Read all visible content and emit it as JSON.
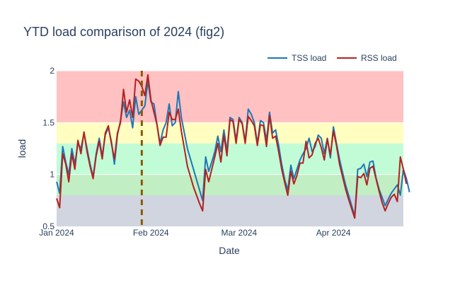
{
  "chart_data": {
    "type": "line",
    "title": "YTD load comparison of 2024 (fig2)",
    "xlabel": "Date",
    "ylabel": "load",
    "x_start": "2024-01-01",
    "x_range": [
      "2024-01-01",
      "2024-04-24"
    ],
    "ylim": [
      0.5,
      2
    ],
    "y_ticks": [
      0.5,
      1,
      1.5,
      2
    ],
    "y_tick_labels": [
      "0.5",
      "1",
      "1.5",
      "2"
    ],
    "x_ticks": [
      "2024-01-01",
      "2024-02-01",
      "2024-03-01",
      "2024-04-01"
    ],
    "x_tick_labels": [
      "Jan 2024",
      "Feb 2024",
      "Mar 2024",
      "Apr 2024"
    ],
    "marker_line": {
      "x": "2024-01-29",
      "color": "#8B5A00"
    },
    "bands": [
      {
        "from": 0.5,
        "to": 0.8,
        "color": "#d0d5df"
      },
      {
        "from": 0.8,
        "to": 1.0,
        "color": "#c2eec3"
      },
      {
        "from": 1.0,
        "to": 1.3,
        "color": "#c1fcd7"
      },
      {
        "from": 1.3,
        "to": 1.5,
        "color": "#fffdc0"
      },
      {
        "from": 1.5,
        "to": 2.0,
        "color": "#ffc1c1"
      }
    ],
    "legend_position": "top-right",
    "series": [
      {
        "name": "TSS load",
        "color": "#1f77b4",
        "values": [
          0.93,
          0.82,
          1.27,
          1.12,
          1.0,
          1.25,
          1.1,
          1.3,
          1.25,
          1.4,
          1.25,
          1.1,
          0.98,
          1.2,
          1.35,
          1.18,
          1.38,
          1.45,
          1.32,
          1.1,
          1.38,
          1.52,
          1.7,
          1.55,
          1.62,
          1.45,
          1.75,
          1.58,
          1.62,
          1.66,
          1.9,
          1.7,
          1.68,
          1.48,
          1.3,
          1.43,
          1.5,
          1.68,
          1.47,
          1.5,
          1.8,
          1.55,
          1.4,
          1.25,
          1.15,
          1.05,
          0.95,
          0.85,
          0.75,
          1.17,
          1.03,
          1.12,
          1.22,
          1.37,
          1.22,
          1.43,
          1.22,
          1.55,
          1.53,
          1.33,
          1.55,
          1.5,
          1.32,
          1.63,
          1.58,
          1.5,
          1.3,
          1.52,
          1.5,
          1.33,
          1.6,
          1.4,
          1.43,
          1.28,
          1.1,
          0.95,
          0.85,
          1.09,
          0.96,
          1.05,
          1.14,
          1.2,
          1.25,
          1.35,
          1.22,
          1.27,
          1.38,
          1.35,
          1.2,
          1.35,
          1.16,
          1.46,
          1.3,
          1.15,
          1.02,
          0.9,
          0.8,
          0.7,
          0.6,
          1.05,
          1.06,
          1.1,
          0.98,
          1.12,
          1.13,
          0.97,
          0.86,
          0.78,
          0.7,
          0.76,
          0.82,
          0.86,
          0.9,
          0.8,
          1.05,
          0.96,
          0.83
        ]
      },
      {
        "name": "RSS load",
        "color": "#b22222",
        "values": [
          0.77,
          0.68,
          1.2,
          1.1,
          0.93,
          1.2,
          1.05,
          1.33,
          1.2,
          1.41,
          1.22,
          1.08,
          0.96,
          1.18,
          1.32,
          1.15,
          1.4,
          1.47,
          1.3,
          1.15,
          1.4,
          1.5,
          1.82,
          1.6,
          1.72,
          1.55,
          1.92,
          1.9,
          1.85,
          1.76,
          1.96,
          1.72,
          1.6,
          1.48,
          1.28,
          1.36,
          1.36,
          1.6,
          1.53,
          1.53,
          1.63,
          1.42,
          1.25,
          1.08,
          0.98,
          0.88,
          0.8,
          0.72,
          0.65,
          1.05,
          0.93,
          1.05,
          1.17,
          1.3,
          1.12,
          1.38,
          1.18,
          1.53,
          1.51,
          1.3,
          1.53,
          1.49,
          1.3,
          1.56,
          1.52,
          1.47,
          1.28,
          1.48,
          1.47,
          1.27,
          1.57,
          1.35,
          1.37,
          1.22,
          1.05,
          0.92,
          0.8,
          1.03,
          0.91,
          0.99,
          1.11,
          1.11,
          1.32,
          1.16,
          1.19,
          1.3,
          1.35,
          1.26,
          1.14,
          1.34,
          1.19,
          1.42,
          1.28,
          1.1,
          0.98,
          0.86,
          0.76,
          0.67,
          0.58,
          0.98,
          0.97,
          1.01,
          0.9,
          1.06,
          1.08,
          0.96,
          0.84,
          0.73,
          0.65,
          0.72,
          0.78,
          0.81,
          0.74,
          1.17,
          1.05,
          0.91
        ]
      }
    ]
  }
}
